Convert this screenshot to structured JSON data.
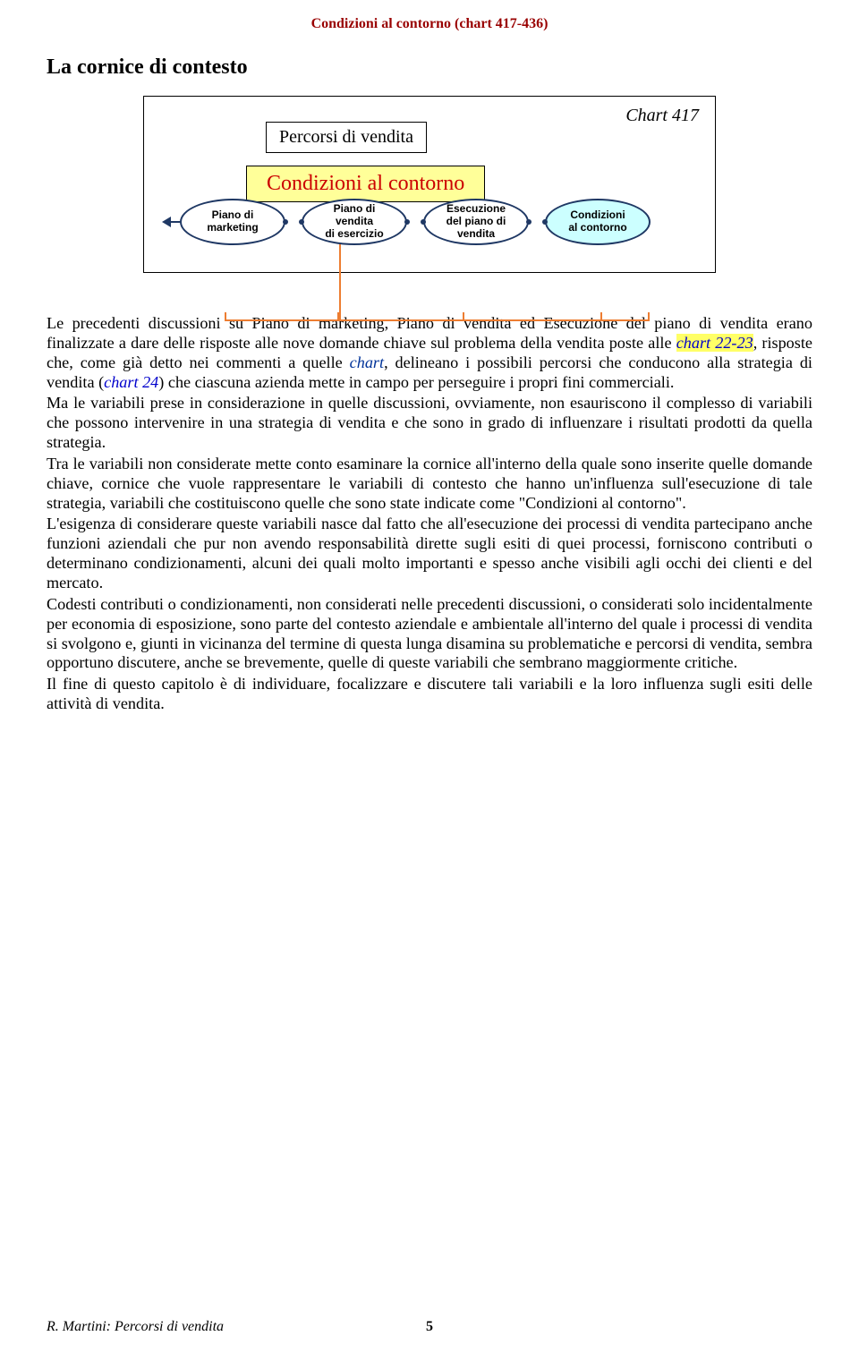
{
  "header": {
    "title": "Condizioni al contorno (chart 417-436)"
  },
  "section_title": "La cornice di contesto",
  "chart": {
    "label": "Chart 417",
    "box_percorsi": "Percorsi di vendita",
    "box_condizioni": "Condizioni al contorno",
    "ellipses": [
      {
        "text": "Piano di\nmarketing",
        "highlight": false
      },
      {
        "text": "Piano di\nvendita\ndi esercizio",
        "highlight": false
      },
      {
        "text": "Esecuzione\ndel piano di\nvendita",
        "highlight": false
      },
      {
        "text": "Condizioni\nal contorno",
        "highlight": true
      }
    ]
  },
  "paragraphs": {
    "p1_a": "Le precedenti discussioni su Piano di marketing, Piano di vendita ed Esecuzione del piano di vendita erano finalizzate a dare delle risposte alle nove domande chiave sul problema della vendita poste alle ",
    "p1_link1": "chart 22-23",
    "p1_b": ", risposte che, come già detto nei commenti a quelle ",
    "p1_chart": "chart",
    "p1_c": ", delineano i possibili percorsi che conducono alla strategia di vendita (",
    "p1_link2": "chart 24",
    "p1_d": ") che ciascuna azienda mette in campo per perseguire i propri fini commerciali.",
    "p2": "Ma le variabili prese in considerazione in quelle discussioni, ovviamente, non esauriscono il complesso di variabili che possono intervenire in una strategia di vendita e che sono in grado di influenzare i risultati prodotti da quella strategia.",
    "p3": "Tra le variabili non considerate mette conto esaminare la cornice all'interno della quale sono inserite quelle domande chiave, cornice che vuole rappresentare le variabili di contesto che hanno un'influenza sull'esecuzione di tale strategia, variabili che costituiscono quelle che sono state indicate come \"Condizioni al contorno\".",
    "p4": "L'esigenza di considerare queste variabili nasce dal fatto che all'esecuzione dei processi di vendita partecipano anche funzioni aziendali che pur non avendo responsabilità dirette sugli esiti di quei processi, forniscono contributi o determinano condizionamenti, alcuni dei quali molto importanti e spesso anche visibili agli occhi dei clienti e del mercato.",
    "p5": "Codesti contributi o condizionamenti, non considerati nelle precedenti discussioni, o considerati solo incidentalmente per economia di esposizione, sono parte del contesto aziendale e ambientale all'interno del quale i processi di vendita si svolgono e, giunti in vicinanza del termine di questa lunga disamina su problematiche e percorsi di vendita, sembra opportuno discutere, anche se brevemente, quelle di queste variabili che sembrano maggiormente critiche.",
    "p6": "Il fine di questo capitolo è di individuare, focalizzare e discutere tali variabili e la loro influenza sugli esiti delle attività di vendita."
  },
  "footer": {
    "left": "R. Martini: Percorsi di vendita",
    "page": "5"
  }
}
